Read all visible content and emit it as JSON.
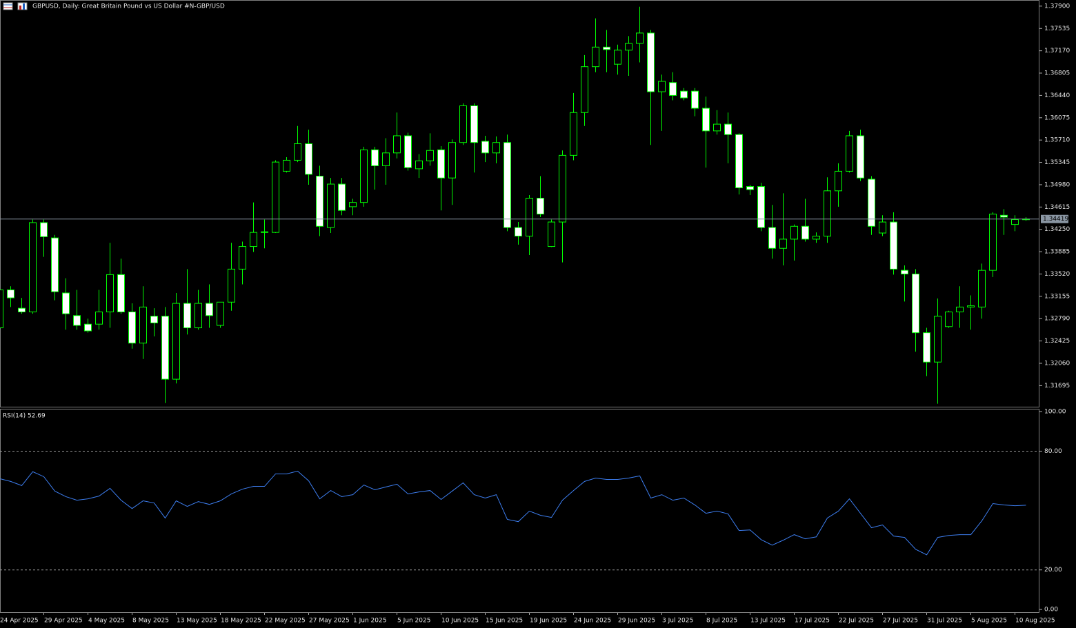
{
  "chart_data": [
    {
      "type": "candlestick",
      "title": "GBPUSD, Daily:  Great Britain Pound vs US Dollar #N-GBP/USD",
      "categories": [
        "24 Apr 2025",
        null,
        null,
        null,
        "29 Apr 2025",
        null,
        null,
        null,
        "4 May 2025",
        null,
        null,
        null,
        "8 May 2025",
        null,
        null,
        null,
        "13 May 2025",
        null,
        null,
        null,
        "18 May 2025",
        null,
        null,
        null,
        "22 May 2025",
        null,
        null,
        null,
        "27 May 2025",
        null,
        null,
        null,
        "1 Jun 2025",
        null,
        null,
        null,
        "5 Jun 2025",
        null,
        null,
        null,
        "10 Jun 2025",
        null,
        null,
        null,
        "15 Jun 2025",
        null,
        null,
        null,
        "19 Jun 2025",
        null,
        null,
        null,
        "24 Jun 2025",
        null,
        null,
        null,
        "29 Jun 2025",
        null,
        null,
        null,
        "3 Jul 2025",
        null,
        null,
        null,
        "8 Jul 2025",
        null,
        null,
        null,
        "13 Jul 2025",
        null,
        null,
        null,
        "17 Jul 2025",
        null,
        null,
        null,
        "22 Jul 2025",
        null,
        null,
        null,
        "27 Jul 2025",
        null,
        null,
        null,
        "31 Jul 2025",
        null,
        null,
        null,
        "5 Aug 2025",
        null,
        null,
        null,
        "10 Aug 2025",
        null
      ],
      "open": [
        1.3264,
        1.3326,
        1.3296,
        1.329,
        1.3436,
        1.3411,
        1.3321,
        1.3284,
        1.327,
        1.327,
        1.329,
        1.3351,
        1.329,
        1.3239,
        1.3283,
        1.3283,
        1.318,
        1.3304,
        1.3264,
        1.3304,
        1.3268,
        1.3306,
        1.336,
        1.3397,
        1.342,
        1.342,
        1.352,
        1.3538,
        1.3565,
        1.3512,
        1.3428,
        1.3499,
        1.3462,
        1.3469,
        1.3555,
        1.3529,
        1.355,
        1.3578,
        1.3524,
        1.3537,
        1.3555,
        1.3509,
        1.3567,
        1.3627,
        1.3569,
        1.355,
        1.3567,
        1.3428,
        1.3414,
        1.3476,
        1.3397,
        1.3437,
        1.3546,
        1.3616,
        1.3691,
        1.3723,
        1.3695,
        1.3718,
        1.3729,
        1.3746,
        1.365,
        1.3665,
        1.3651,
        1.3651,
        1.3623,
        1.3586,
        1.3597,
        1.358,
        1.3495,
        1.3495,
        1.3428,
        1.3394,
        1.3409,
        1.343,
        1.3409,
        1.3414,
        1.3488,
        1.352,
        1.3578,
        1.3507,
        1.3419,
        1.3437,
        1.3358,
        1.3352,
        1.3256,
        1.3208,
        1.3266,
        1.329,
        1.3298,
        1.3298,
        1.3358,
        1.3448,
        1.3433,
        1.3441
      ],
      "high": [
        1.3332,
        1.3332,
        1.3313,
        1.3441,
        1.3441,
        1.3416,
        1.3345,
        1.3326,
        1.3279,
        1.3326,
        1.3403,
        1.3377,
        1.3304,
        1.3332,
        1.3296,
        1.3298,
        1.3321,
        1.336,
        1.3326,
        1.3335,
        1.3306,
        1.3403,
        1.3405,
        1.3469,
        1.3441,
        1.3538,
        1.3543,
        1.3594,
        1.3588,
        1.3529,
        1.3509,
        1.3509,
        1.3475,
        1.356,
        1.356,
        1.3574,
        1.3616,
        1.3583,
        1.3548,
        1.3582,
        1.3561,
        1.3572,
        1.3631,
        1.3631,
        1.3578,
        1.3577,
        1.358,
        1.3437,
        1.3481,
        1.3512,
        1.3441,
        1.3554,
        1.3648,
        1.371,
        1.377,
        1.3751,
        1.3727,
        1.3741,
        1.3789,
        1.3751,
        1.3678,
        1.3682,
        1.3656,
        1.3656,
        1.3642,
        1.362,
        1.3616,
        1.3582,
        1.3498,
        1.3501,
        1.3465,
        1.3484,
        1.3433,
        1.3475,
        1.342,
        1.351,
        1.3533,
        1.3586,
        1.3588,
        1.3512,
        1.3448,
        1.3453,
        1.3366,
        1.336,
        1.3264,
        1.3312,
        1.3292,
        1.3332,
        1.3317,
        1.3369,
        1.3453,
        1.3458,
        1.3448,
        1.3445
      ],
      "low": [
        1.3261,
        1.3298,
        1.3287,
        1.3287,
        1.338,
        1.3309,
        1.3261,
        1.3261,
        1.3256,
        1.3261,
        1.3264,
        1.3287,
        1.323,
        1.3213,
        1.325,
        1.3141,
        1.3173,
        1.3253,
        1.3261,
        1.3264,
        1.3264,
        1.3292,
        1.3335,
        1.3388,
        1.3394,
        1.3419,
        1.3518,
        1.3535,
        1.3498,
        1.3414,
        1.3419,
        1.3448,
        1.3448,
        1.3462,
        1.349,
        1.3498,
        1.3541,
        1.3521,
        1.3509,
        1.3529,
        1.3456,
        1.3465,
        1.3563,
        1.3518,
        1.3535,
        1.3533,
        1.3422,
        1.34,
        1.3383,
        1.3445,
        1.3396,
        1.3371,
        1.3538,
        1.3594,
        1.3682,
        1.3682,
        1.3678,
        1.3676,
        1.3698,
        1.3563,
        1.3586,
        1.3636,
        1.3636,
        1.361,
        1.3526,
        1.358,
        1.3533,
        1.3482,
        1.3481,
        1.3422,
        1.3377,
        1.3366,
        1.3374,
        1.3405,
        1.3403,
        1.3403,
        1.3462,
        1.3518,
        1.3504,
        1.3416,
        1.3414,
        1.3351,
        1.3307,
        1.3225,
        1.3185,
        1.314,
        1.3264,
        1.3264,
        1.3261,
        1.3279,
        1.3347,
        1.3416,
        1.3422,
        1.3439
      ],
      "close": [
        1.3326,
        1.3313,
        1.329,
        1.3436,
        1.3413,
        1.3323,
        1.3287,
        1.3268,
        1.3259,
        1.329,
        1.3351,
        1.329,
        1.3239,
        1.3298,
        1.3272,
        1.318,
        1.3304,
        1.3264,
        1.3304,
        1.3284,
        1.3306,
        1.336,
        1.3397,
        1.342,
        1.3421,
        1.3535,
        1.3538,
        1.3565,
        1.3515,
        1.343,
        1.3499,
        1.3456,
        1.3469,
        1.3555,
        1.3529,
        1.355,
        1.3578,
        1.3526,
        1.3537,
        1.3554,
        1.3509,
        1.3567,
        1.3627,
        1.3567,
        1.355,
        1.3567,
        1.3428,
        1.3414,
        1.3476,
        1.345,
        1.3437,
        1.3546,
        1.3616,
        1.3691,
        1.3723,
        1.3719,
        1.3718,
        1.3729,
        1.3746,
        1.365,
        1.3667,
        1.3644,
        1.364,
        1.3623,
        1.3586,
        1.3597,
        1.358,
        1.3493,
        1.349,
        1.3428,
        1.3394,
        1.3409,
        1.343,
        1.3409,
        1.3414,
        1.3488,
        1.352,
        1.3578,
        1.3509,
        1.343,
        1.3437,
        1.336,
        1.3352,
        1.3256,
        1.3208,
        1.3283,
        1.329,
        1.3298,
        1.33,
        1.3358,
        1.345,
        1.3445,
        1.3441,
        1.34419
      ],
      "up_color": "#000000",
      "down_color": "#ffffff",
      "wick_color": "#00ff00",
      "last_price": 1.34419,
      "last_price_color": "#8a96a3",
      "ylim": [
        1.3135,
        1.38
      ],
      "yticks": [
        {
          "value": 1.379,
          "label": "1.37900"
        },
        1.37535,
        {
          "value": 1.3717,
          "label": "1.37170"
        },
        1.36805,
        {
          "value": 1.3644,
          "label": "1.36440"
        },
        1.36075,
        {
          "value": 1.3571,
          "label": "1.35710"
        },
        1.35345,
        {
          "value": 1.3498,
          "label": "1.34980"
        },
        1.34615,
        {
          "value": 1.3425,
          "label": "1.34250"
        },
        1.33885,
        {
          "value": 1.3352,
          "label": "1.33520"
        },
        1.33155,
        {
          "value": 1.3279,
          "label": "1.32790"
        },
        1.32425,
        {
          "value": 1.3206,
          "label": "1.32060"
        },
        1.31695
      ]
    },
    {
      "type": "line",
      "title": "RSI(14) 52.69",
      "color": "#3d7ef0",
      "values": [
        66.1,
        64.7,
        62.6,
        69.6,
        67.1,
        59.8,
        57.0,
        55.2,
        55.9,
        57.3,
        61.2,
        55.2,
        51.0,
        54.9,
        53.8,
        46.2,
        54.9,
        52.1,
        54.5,
        53.1,
        54.9,
        58.4,
        60.8,
        62.2,
        62.2,
        68.5,
        68.5,
        69.9,
        65.0,
        55.9,
        60.1,
        57.0,
        58.0,
        62.9,
        60.5,
        61.9,
        63.3,
        58.4,
        59.4,
        60.1,
        55.6,
        59.8,
        64.0,
        58.0,
        56.3,
        58.0,
        45.5,
        44.4,
        49.7,
        47.6,
        46.5,
        55.2,
        60.1,
        64.7,
        66.4,
        65.7,
        65.7,
        66.4,
        67.5,
        56.3,
        58.0,
        55.2,
        56.3,
        52.8,
        48.6,
        49.7,
        48.3,
        39.9,
        40.2,
        35.3,
        32.5,
        35.0,
        37.8,
        35.7,
        36.7,
        46.2,
        49.7,
        55.9,
        48.6,
        41.3,
        42.7,
        37.1,
        36.4,
        30.4,
        27.6,
        36.4,
        37.4,
        37.8,
        37.8,
        44.8,
        53.5,
        52.8,
        52.4,
        52.69
      ],
      "ylim": [
        -1.7,
        101.4
      ],
      "yticks": [
        {
          "value": 100,
          "label": "100.00"
        },
        {
          "value": 80,
          "label": "80.00"
        },
        {
          "value": 20,
          "label": "20.00"
        },
        {
          "value": 0,
          "label": "0.00"
        }
      ],
      "levels": [
        80,
        20
      ]
    }
  ]
}
